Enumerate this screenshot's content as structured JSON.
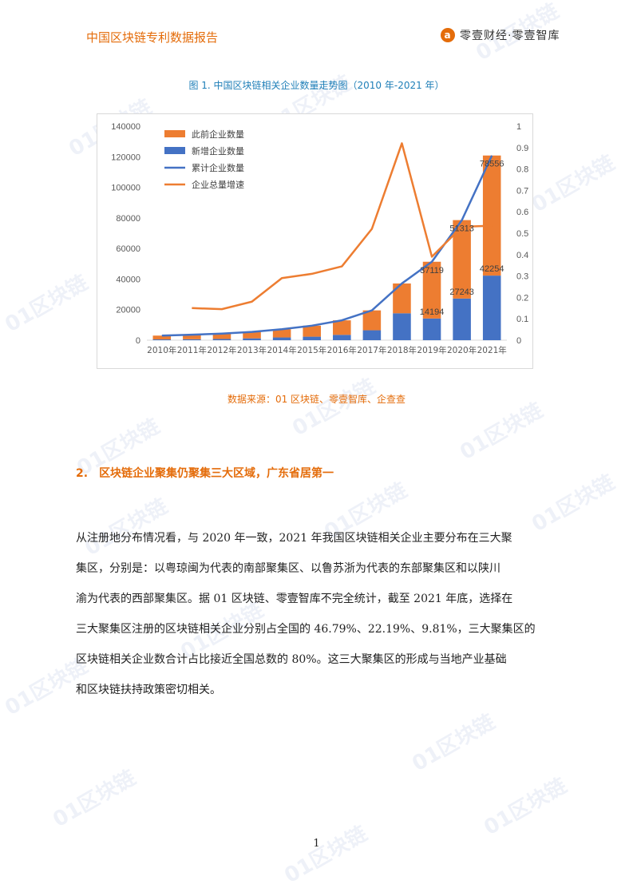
{
  "header": {
    "title": "中国区块链专利数据报告",
    "brand_text": "零壹财经·零壹智库",
    "brand_logo_icon": "a-logo-icon"
  },
  "figure": {
    "caption": "图 1.  中国区块链相关企业数量走势图（2010 年-2021 年）",
    "source": "数据来源：01 区块链、零壹智库、企查查"
  },
  "chart_data": {
    "type": "bar",
    "categories": [
      "2010年",
      "2011年",
      "2012年",
      "2013年",
      "2014年",
      "2015年",
      "2016年",
      "2017年",
      "2018年",
      "2019年",
      "2020年",
      "2021年"
    ],
    "series": [
      {
        "name": "此前企业数量",
        "kind": "stacked-bar",
        "color": "#ed7d31",
        "values": [
          2500,
          3000,
          3500,
          4200,
          5400,
          7200,
          9500,
          13000,
          19500,
          37119,
          51313,
          78556
        ]
      },
      {
        "name": "新增企业数量",
        "kind": "stacked-bar",
        "color": "#4472c4",
        "values": [
          500,
          600,
          800,
          1200,
          1800,
          2300,
          3500,
          6500,
          17600,
          14194,
          27243,
          42254
        ]
      },
      {
        "name": "累计企业数量",
        "kind": "line",
        "axis": "left",
        "color": "#4472c4",
        "values": [
          3000,
          3600,
          4300,
          5400,
          7200,
          9500,
          13000,
          19500,
          37119,
          51313,
          78556,
          120810
        ]
      },
      {
        "name": "企业总量增速",
        "kind": "line",
        "axis": "right",
        "color": "#ed7d31",
        "values": [
          null,
          0.15,
          0.145,
          0.18,
          0.29,
          0.31,
          0.345,
          0.52,
          0.92,
          0.39,
          0.53,
          0.535
        ]
      }
    ],
    "data_labels": [
      {
        "category": "2019年",
        "text": "37119"
      },
      {
        "category": "2020年",
        "text": "51313"
      },
      {
        "category": "2021年",
        "text": "78556"
      },
      {
        "category": "2019年",
        "text": "14194"
      },
      {
        "category": "2020年",
        "text": "27243"
      },
      {
        "category": "2021年",
        "text": "42254"
      }
    ],
    "y_left": {
      "min": 0,
      "max": 140000,
      "ticks": [
        "0",
        "20000",
        "40000",
        "60000",
        "80000",
        "100000",
        "120000",
        "140000"
      ]
    },
    "y_right": {
      "min": 0,
      "max": 1,
      "ticks": [
        "0",
        "0.1",
        "0.2",
        "0.3",
        "0.4",
        "0.5",
        "0.6",
        "0.7",
        "0.8",
        "0.9",
        "1"
      ]
    },
    "legend_position": "top-left",
    "grid": false
  },
  "section": {
    "number": "2.",
    "title": "区块链企业聚集仍聚集三大区域，广东省居第一"
  },
  "body": {
    "lines": [
      "从注册地分布情况看，与 2020 年一致，2021 年我国区块链相关企业主要分布在三大聚",
      "集区，分别是：以粤琼闽为代表的南部聚集区、以鲁苏浙为代表的东部聚集区和以陕川",
      "渝为代表的西部聚集区。据 01 区块链、零壹智库不完全统计，截至 2021 年底，选择在",
      "三大聚集区注册的区块链相关企业分别占全国的 46.79%、22.19%、9.81%，三大聚集区的",
      "区块链相关企业数合计占比接近全国总数的 80%。这三大聚集区的形成与当地产业基础",
      "和区块链扶持政策密切相关。"
    ]
  },
  "watermark": {
    "text": "01区块链"
  },
  "page_number": "1"
}
